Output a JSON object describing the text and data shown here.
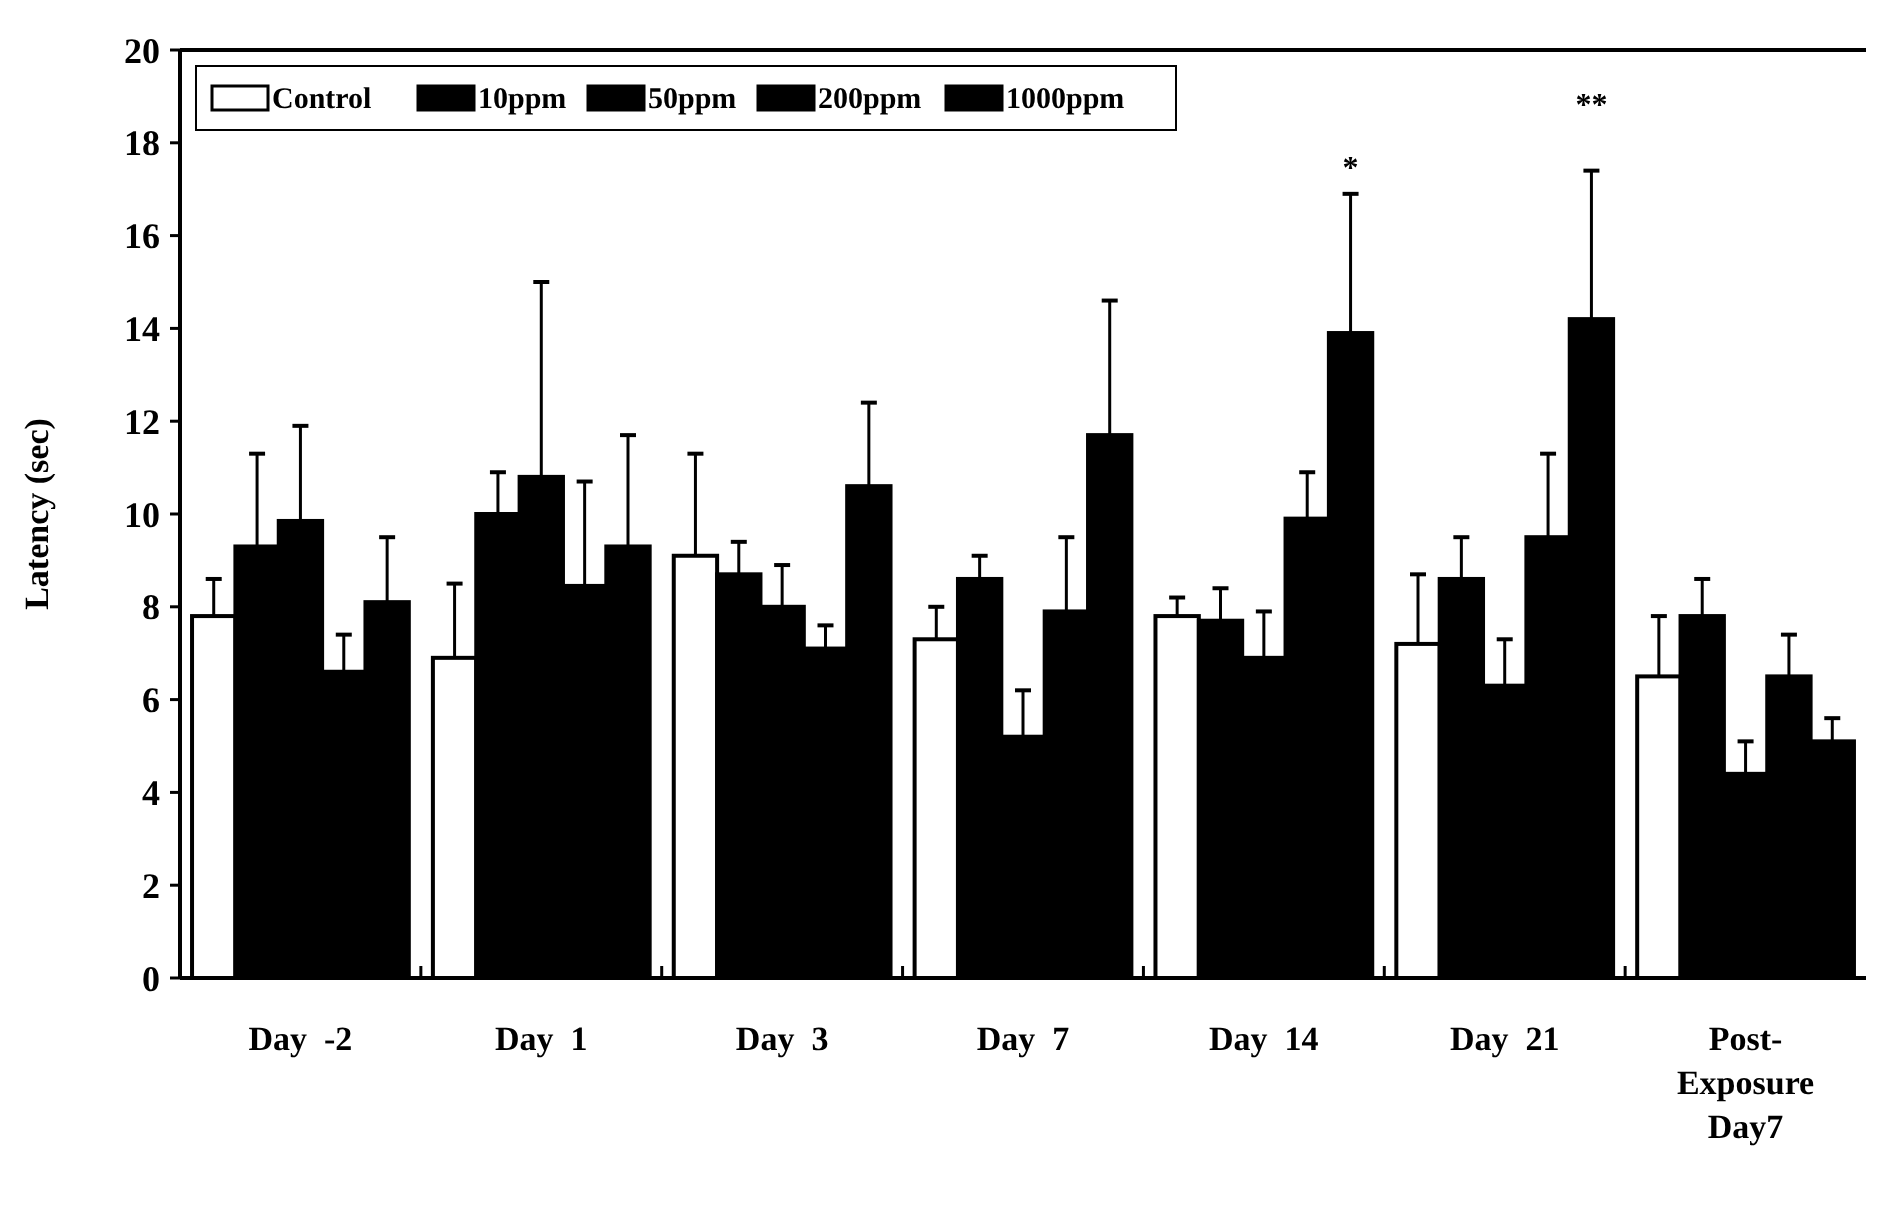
{
  "chart_data": {
    "type": "bar",
    "ylabel": "Latency (sec)",
    "categories": [
      "Day  -2",
      "Day  1",
      "Day  3",
      "Day  7",
      "Day  14",
      "Day  21",
      "Post-Exposure Day7"
    ],
    "series": [
      {
        "name": "Control",
        "color": "#ffffff",
        "values": [
          7.8,
          6.9,
          9.1,
          7.3,
          7.8,
          7.2,
          6.5
        ],
        "errors": [
          [
            7.8,
            8.6
          ],
          [
            6.9,
            8.5
          ],
          [
            9.1,
            11.3
          ],
          [
            7.3,
            8.0
          ],
          [
            7.8,
            8.2
          ],
          [
            7.2,
            8.7
          ],
          [
            6.5,
            7.8
          ]
        ]
      },
      {
        "name": "10ppm",
        "color": "#000000",
        "values": [
          9.3,
          10.0,
          8.7,
          8.6,
          7.7,
          8.6,
          7.8
        ],
        "errors": [
          [
            9.3,
            11.3
          ],
          [
            10.0,
            10.9
          ],
          [
            8.7,
            9.4
          ],
          [
            8.6,
            9.1
          ],
          [
            7.7,
            8.4
          ],
          [
            8.6,
            9.5
          ],
          [
            7.8,
            8.6
          ]
        ]
      },
      {
        "name": "50ppm",
        "color": "#000000",
        "values": [
          9.85,
          10.8,
          8.0,
          5.2,
          6.9,
          6.3,
          4.4
        ],
        "errors": [
          [
            9.85,
            11.9
          ],
          [
            10.8,
            15.0
          ],
          [
            8.0,
            8.9
          ],
          [
            5.2,
            6.2
          ],
          [
            6.9,
            7.9
          ],
          [
            6.3,
            7.3
          ],
          [
            4.4,
            5.1
          ]
        ]
      },
      {
        "name": "200ppm",
        "color": "#000000",
        "values": [
          6.6,
          8.45,
          7.1,
          7.9,
          9.9,
          9.5,
          6.5
        ],
        "errors": [
          [
            6.6,
            7.4
          ],
          [
            8.45,
            10.7
          ],
          [
            7.1,
            7.6
          ],
          [
            7.9,
            9.5
          ],
          [
            9.9,
            10.9
          ],
          [
            9.5,
            11.3
          ],
          [
            6.5,
            7.4
          ]
        ]
      },
      {
        "name": "1000ppm",
        "color": "#000000",
        "values": [
          8.1,
          9.3,
          10.6,
          11.7,
          13.9,
          14.2,
          5.1
        ],
        "errors": [
          [
            8.1,
            9.5
          ],
          [
            9.3,
            11.7
          ],
          [
            10.6,
            12.4
          ],
          [
            11.7,
            14.6
          ],
          [
            13.9,
            16.9
          ],
          [
            14.2,
            17.4
          ],
          [
            5.1,
            5.6
          ]
        ]
      }
    ],
    "ylim": [
      0,
      20
    ],
    "yticks": [
      0,
      2,
      4,
      6,
      8,
      10,
      12,
      14,
      16,
      18,
      20
    ],
    "legend": "top left",
    "annotations": [
      "*",
      "**"
    ]
  }
}
